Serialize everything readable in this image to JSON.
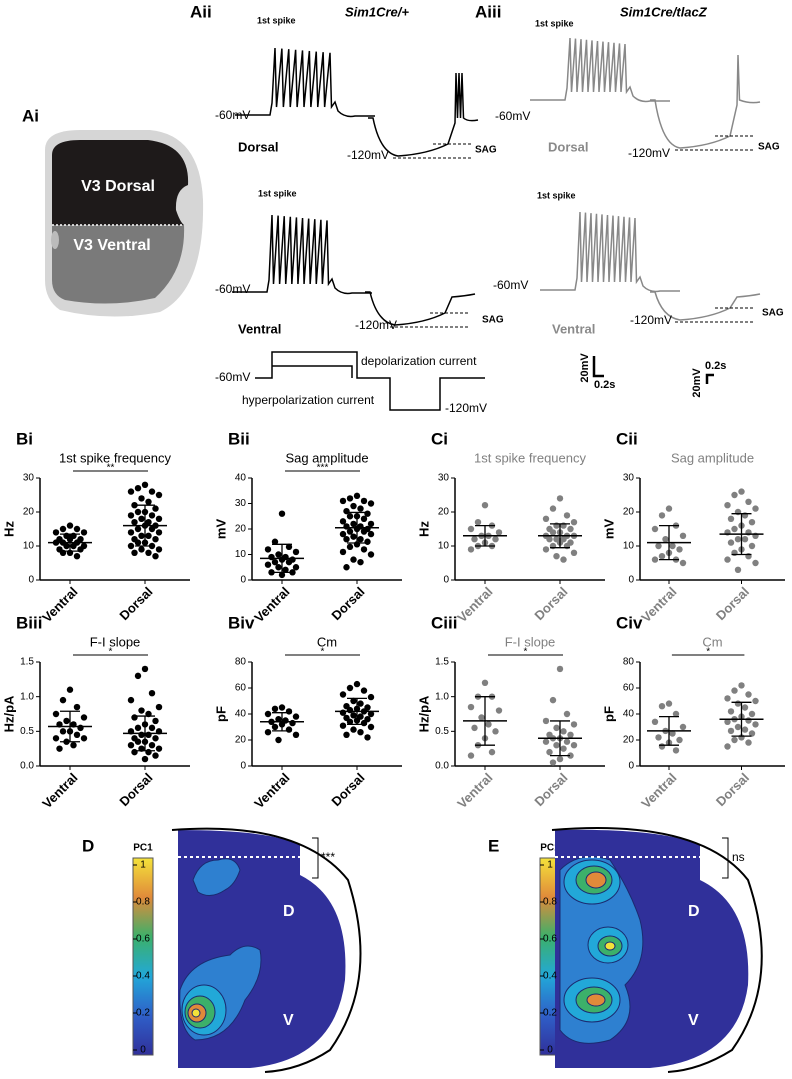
{
  "figure": {
    "ai": {
      "label": "Ai",
      "dorsal": "V3 Dorsal",
      "ventral": "V3 Ventral"
    },
    "aii": {
      "label": "Aii",
      "genotype": "Sim1Cre/+",
      "dorsal_spike": "1st spike",
      "dorsal_rest": "-60mV",
      "dorsal_hyper": "-120mV",
      "dorsal_sag": "SAG",
      "dorsal": "Dorsal",
      "ventral_spike": "1st spike",
      "ventral_rest": "-60mV",
      "ventral_hyper": "-120mV",
      "ventral_sag": "SAG",
      "ventral": "Ventral"
    },
    "aiii": {
      "label": "Aiii",
      "genotype": "Sim1Cre/tlacZ",
      "dorsal_spike": "1st spike",
      "dorsal_rest": "-60mV",
      "dorsal_hyper": "-120mV",
      "dorsal_sag": "SAG",
      "dorsal": "Dorsal",
      "ventral_spike": "1st spike",
      "ventral_rest": "-60mV",
      "ventral_hyper": "-120mV",
      "ventral_sag": "SAG",
      "ventral": "Ventral"
    },
    "protocol": {
      "rest": "-60mV",
      "depolarization": "depolarization current",
      "hyperpolarization": "hyperpolarization current",
      "hyper_level": "-120mV"
    },
    "scale_bars": [
      {
        "voltage": "20mV",
        "time": "0.2s"
      },
      {
        "voltage": "20mV",
        "time": "0.2s"
      }
    ],
    "d": {
      "label": "D",
      "colorbar_label": "PC1",
      "colorbar_lim": [
        0,
        1
      ],
      "colorbar_ticks": [
        0,
        0.2,
        0.4,
        0.6,
        0.8,
        1
      ],
      "dorsal": "D",
      "ventral": "V",
      "significance": "***"
    },
    "e": {
      "label": "E",
      "colorbar_label": "PC1",
      "colorbar_lim": [
        0,
        1
      ],
      "colorbar_ticks": [
        0,
        0.2,
        0.4,
        0.6,
        0.8,
        1
      ],
      "dorsal": "D",
      "ventral": "V",
      "significance": "ns"
    }
  },
  "chart_data": [
    {
      "type": "dot",
      "label": "Bi",
      "title": "1st spike frequency",
      "ylabel": "Hz",
      "color": "#000000",
      "categories": [
        "Ventral",
        "Dorsal"
      ],
      "values": [
        [
          16,
          15,
          15,
          14,
          14,
          13,
          13,
          12,
          12,
          12,
          11,
          11,
          11,
          10,
          10,
          10,
          9,
          9,
          8,
          8,
          7
        ],
        [
          28,
          27,
          26,
          26,
          25,
          24,
          23,
          22,
          21,
          20,
          20,
          19,
          19,
          18,
          18,
          17,
          17,
          16,
          16,
          15,
          15,
          14,
          14,
          13,
          13,
          12,
          12,
          11,
          11,
          10,
          10,
          9,
          9,
          8,
          8,
          7
        ]
      ],
      "means": [
        11,
        16
      ],
      "sds": [
        2.5,
        6
      ],
      "ylim": [
        0,
        30
      ],
      "yticks": [
        0,
        10,
        20,
        30
      ],
      "significance": "**"
    },
    {
      "type": "dot",
      "label": "Bii",
      "title": "Sag amplitude",
      "ylabel": "mV",
      "color": "#000000",
      "categories": [
        "Ventral",
        "Dorsal"
      ],
      "values": [
        [
          26,
          15,
          13,
          12,
          11,
          10,
          9,
          9,
          8,
          8,
          7,
          7,
          6,
          5,
          5,
          4,
          3,
          3,
          2
        ],
        [
          33,
          32,
          31,
          31,
          30,
          29,
          28,
          27,
          26,
          25,
          25,
          24,
          23,
          22,
          22,
          21,
          21,
          20,
          20,
          19,
          19,
          18,
          18,
          17,
          16,
          16,
          15,
          14,
          13,
          12,
          11,
          10,
          8,
          7,
          5
        ]
      ],
      "means": [
        8.5,
        20.5
      ],
      "sds": [
        5.5,
        6
      ],
      "ylim": [
        0,
        40
      ],
      "yticks": [
        0,
        10,
        20,
        30,
        40
      ],
      "significance": "***"
    },
    {
      "type": "dot",
      "label": "Biii",
      "title": "F-I slope",
      "ylabel": "Hz/pA",
      "color": "#000000",
      "categories": [
        "Ventral",
        "Dorsal"
      ],
      "values": [
        [
          1.1,
          0.95,
          0.85,
          0.75,
          0.7,
          0.65,
          0.6,
          0.6,
          0.55,
          0.5,
          0.5,
          0.45,
          0.4,
          0.4,
          0.35,
          0.3,
          0.25
        ],
        [
          1.4,
          1.3,
          1.05,
          0.95,
          0.85,
          0.8,
          0.75,
          0.7,
          0.65,
          0.6,
          0.55,
          0.55,
          0.5,
          0.5,
          0.45,
          0.45,
          0.4,
          0.4,
          0.35,
          0.35,
          0.3,
          0.3,
          0.25,
          0.25,
          0.2,
          0.2,
          0.15,
          0.1
        ]
      ],
      "means": [
        0.57,
        0.47
      ],
      "sds": [
        0.22,
        0.25
      ],
      "ylim": [
        0,
        1.5
      ],
      "yticks": [
        {
          "value": 0,
          "label": "0.0"
        },
        {
          "value": 0.5,
          "label": "0.5"
        },
        {
          "value": 1,
          "label": "1.0"
        },
        {
          "value": 1.5,
          "label": "1.5"
        }
      ],
      "significance": "*"
    },
    {
      "type": "dot",
      "label": "Biv",
      "title": "Cm",
      "ylabel": "pF",
      "color": "#000000",
      "categories": [
        "Ventral",
        "Dorsal"
      ],
      "values": [
        [
          45,
          44,
          42,
          40,
          38,
          36,
          35,
          34,
          33,
          32,
          30,
          28,
          26,
          24,
          20
        ],
        [
          63,
          60,
          58,
          55,
          53,
          50,
          48,
          46,
          45,
          44,
          43,
          42,
          41,
          40,
          39,
          38,
          37,
          36,
          35,
          34,
          33,
          31,
          30,
          28,
          26,
          24,
          22
        ]
      ],
      "means": [
        34,
        42
      ],
      "sds": [
        7,
        10
      ],
      "ylim": [
        0,
        80
      ],
      "yticks": [
        0,
        20,
        40,
        60,
        80
      ],
      "significance": "*"
    },
    {
      "type": "dot",
      "label": "Ci",
      "title": "1st spike frequency",
      "ylabel": "Hz",
      "color": "#808080",
      "categories": [
        "Ventral",
        "Dorsal"
      ],
      "values": [
        [
          22,
          17,
          16,
          15,
          14,
          13,
          13,
          12,
          12,
          11,
          10,
          10,
          9
        ],
        [
          24,
          21,
          19,
          18,
          17,
          16,
          16,
          15,
          15,
          14,
          14,
          13,
          13,
          13,
          12,
          12,
          12,
          11,
          11,
          10,
          10,
          9,
          8,
          7,
          6
        ]
      ],
      "means": [
        13,
        13
      ],
      "sds": [
        3,
        3.5
      ],
      "ylim": [
        0,
        30
      ],
      "yticks": [
        0,
        10,
        20,
        30
      ]
    },
    {
      "type": "dot",
      "label": "Cii",
      "title": "Sag amplitude",
      "ylabel": "mV",
      "color": "#808080",
      "categories": [
        "Ventral",
        "Dorsal"
      ],
      "values": [
        [
          21,
          19,
          16,
          15,
          13,
          12,
          10,
          10,
          9,
          8,
          7,
          6,
          6,
          5
        ],
        [
          26,
          25,
          23,
          22,
          21,
          20,
          19,
          18,
          17,
          16,
          15,
          14,
          14,
          13,
          12,
          12,
          11,
          10,
          9,
          8,
          7,
          6,
          5,
          3
        ]
      ],
      "means": [
        11,
        13.5
      ],
      "sds": [
        5,
        6
      ],
      "ylim": [
        0,
        30
      ],
      "yticks": [
        0,
        10,
        20,
        30
      ]
    },
    {
      "type": "dot",
      "label": "Ciii",
      "title": "F-I slope",
      "ylabel": "Hz/pA",
      "color": "#808080",
      "categories": [
        "Ventral",
        "Dorsal"
      ],
      "values": [
        [
          1.2,
          1.0,
          1.0,
          0.85,
          0.8,
          0.7,
          0.6,
          0.55,
          0.5,
          0.4,
          0.3,
          0.2,
          0.15
        ],
        [
          1.4,
          0.95,
          0.75,
          0.65,
          0.6,
          0.55,
          0.5,
          0.45,
          0.45,
          0.4,
          0.4,
          0.35,
          0.35,
          0.3,
          0.3,
          0.25,
          0.2,
          0.15,
          0.1,
          0.05
        ]
      ],
      "means": [
        0.65,
        0.4
      ],
      "sds": [
        0.35,
        0.25
      ],
      "ylim": [
        0,
        1.5
      ],
      "yticks": [
        {
          "value": 0,
          "label": "0.0"
        },
        {
          "value": 0.5,
          "label": "0.5"
        },
        {
          "value": 1,
          "label": "1.0"
        },
        {
          "value": 1.5,
          "label": "1.5"
        }
      ],
      "significance": "*"
    },
    {
      "type": "dot",
      "label": "Civ",
      "title": "Cm",
      "ylabel": "pF",
      "color": "#808080",
      "categories": [
        "Ventral",
        "Dorsal"
      ],
      "values": [
        [
          48,
          46,
          40,
          34,
          30,
          27,
          25,
          22,
          20,
          18,
          15,
          12
        ],
        [
          62,
          58,
          55,
          52,
          50,
          48,
          45,
          42,
          40,
          38,
          36,
          35,
          34,
          32,
          30,
          28,
          27,
          25,
          22,
          20,
          18,
          15
        ]
      ],
      "means": [
        27,
        36
      ],
      "sds": [
        11,
        13
      ],
      "ylim": [
        0,
        80
      ],
      "yticks": [
        0,
        20,
        40,
        60,
        80
      ],
      "significance": "*"
    }
  ]
}
